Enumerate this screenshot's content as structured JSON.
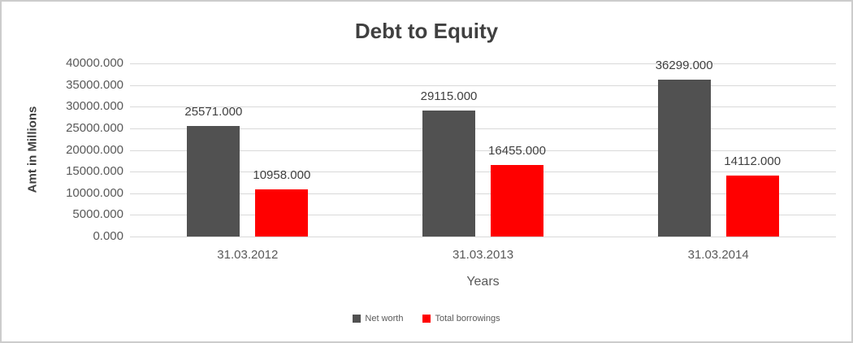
{
  "chart_data": {
    "type": "bar",
    "title": "Debt to Equity",
    "xlabel": "Years",
    "ylabel": "Amt in Millions",
    "categories": [
      "31.03.2012",
      "31.03.2013",
      "31.03.2014"
    ],
    "series": [
      {
        "name": "Net worth",
        "color": "#515151",
        "values": [
          25571,
          29115,
          36299
        ],
        "labels": [
          "25571.000",
          "29115.000",
          "36299.000"
        ]
      },
      {
        "name": "Total borrowings",
        "color": "#ff0000",
        "values": [
          10958,
          16455,
          14112
        ],
        "labels": [
          "10958.000",
          "16455.000",
          "14112.000"
        ]
      }
    ],
    "ylim": [
      0,
      40000
    ],
    "ytick_step": 5000,
    "yticks": [
      "40000.000",
      "35000.000",
      "30000.000",
      "25000.000",
      "20000.000",
      "15000.000",
      "10000.000",
      "5000.000",
      "0.000"
    ],
    "grid": true,
    "legend_position": "bottom"
  },
  "colors": {
    "net_worth_bar": "#515151",
    "total_borrowings_bar": "#ff0000",
    "gridline": "#d9d9d9",
    "axis_text": "#595959",
    "title_text": "#404040",
    "frame_border": "#cccccc"
  }
}
